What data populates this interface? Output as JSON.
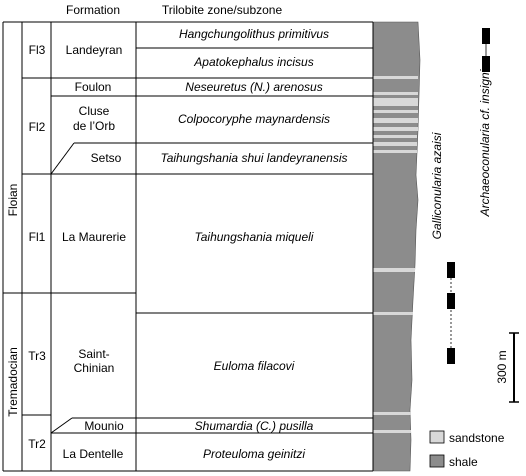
{
  "headers": {
    "formation": "Formation",
    "zone": "Trilobite zone/subzone"
  },
  "series": [
    {
      "name": "Floian"
    },
    {
      "name": "Tremadocian"
    }
  ],
  "stages": [
    {
      "name": "Fl3"
    },
    {
      "name": "Fl2"
    },
    {
      "name": "Fl1"
    },
    {
      "name": "Tr3"
    },
    {
      "name": "Tr2"
    }
  ],
  "formations": [
    {
      "line1": "Landeyran",
      "line2": ""
    },
    {
      "line1": "Foulon",
      "line2": ""
    },
    {
      "line1": "Cluse",
      "line2": "de l’Orb"
    },
    {
      "line1": "Setso",
      "line2": ""
    },
    {
      "line1": "La Maurerie",
      "line2": ""
    },
    {
      "line1": "Saint-",
      "line2": "Chinian"
    },
    {
      "line1": "Mounio",
      "line2": ""
    },
    {
      "line1": "La Dentelle",
      "line2": ""
    }
  ],
  "zones": [
    {
      "name": "Hangchungolithus primitivus"
    },
    {
      "name": "Apatokephalus incisus"
    },
    {
      "name": "Neseuretus (N.) arenosus"
    },
    {
      "name": "Colpocoryphe maynardensis"
    },
    {
      "name": "Taihungshania shui landeyranensis"
    },
    {
      "name": "Taihungshania miqueli"
    },
    {
      "name": "Euloma filacovi"
    },
    {
      "name": "Shumardia (C.) pusilla"
    },
    {
      "name": "Proteuloma geinitzi"
    }
  ],
  "taxa": [
    {
      "name": "Galliconularia azaisi"
    },
    {
      "name": "Archaeoconularia cf. insignis"
    }
  ],
  "scale": {
    "label": "300 m"
  },
  "legend": [
    {
      "label": "sandstone",
      "color": "#d8d8d8"
    },
    {
      "label": "shale",
      "color": "#8c8c8c"
    }
  ],
  "colors": {
    "shale": "#8c8c8c",
    "sandstone": "#d8d8d8",
    "lines": "#000000"
  }
}
